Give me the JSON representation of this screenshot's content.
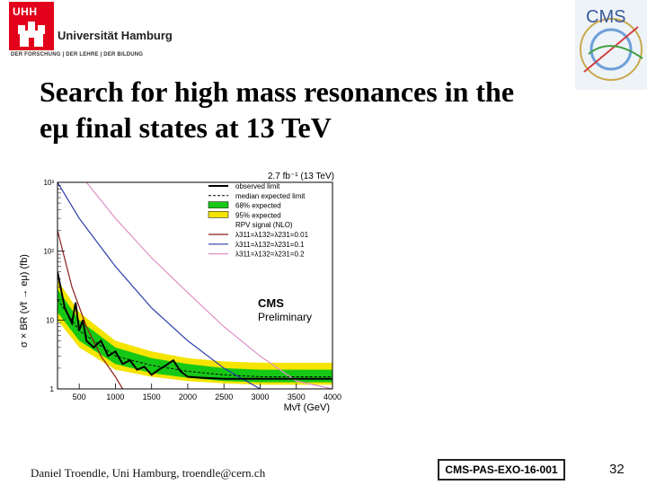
{
  "header": {
    "uhh_mark": "UHH",
    "university_name": "Universität Hamburg",
    "university_claim": "DER FORSCHUNG | DER LEHRE | DER BILDUNG",
    "experiment_logo": "CMS"
  },
  "slide": {
    "title_line1": "Search for high mass resonances in the",
    "title_line2": "eμ final states at 13 TeV"
  },
  "footer": {
    "author": "Daniel Troendle, Uni Hamburg, troendle@cern.ch",
    "reference": "CMS-PAS-EXO-16-001",
    "page_number": "32"
  },
  "colors": {
    "band95": "#f5e400",
    "band68": "#16c816",
    "observed": "#000000",
    "signal1": "#8b1a1a",
    "signal2": "#2a3aa8",
    "signal3": "#e090c8"
  },
  "chart_data": {
    "type": "line",
    "lumi_label": "2.7 fb⁻¹ (13 TeV)",
    "ylabel": "σ × BR (ν̃τ → eμ) (fb)",
    "xlabel": "Mν̃τ (GeV)",
    "xlim": [
      200,
      4000
    ],
    "ylim_log10": [
      0,
      3
    ],
    "x_ticks": [
      500,
      1000,
      1500,
      2000,
      2500,
      3000,
      3500,
      4000
    ],
    "y_ticks": [
      {
        "value": 1,
        "label": "1"
      },
      {
        "value": 10,
        "label": "10"
      },
      {
        "value": 100,
        "label": "10²"
      },
      {
        "value": 1000,
        "label": "10³"
      }
    ],
    "cms_label": "CMS",
    "cms_sublabel": "Preliminary",
    "legend": [
      {
        "key": "observed",
        "label": "observed limit"
      },
      {
        "key": "median",
        "label": "median expected limit"
      },
      {
        "key": "band68",
        "label": "68% expected"
      },
      {
        "key": "band95",
        "label": "95% expected"
      },
      {
        "key": "header",
        "label": "RPV signal (NLO)"
      },
      {
        "key": "signal1",
        "label": "λ311=λ132=λ231=0.01"
      },
      {
        "key": "signal2",
        "label": "λ311=λ132=λ231=0.1"
      },
      {
        "key": "signal3",
        "label": "λ311=λ132=λ231=0.2"
      }
    ],
    "observed": {
      "x": [
        200,
        300,
        400,
        450,
        500,
        550,
        600,
        700,
        800,
        900,
        1000,
        1100,
        1200,
        1300,
        1400,
        1500,
        1600,
        1700,
        1800,
        1900,
        2000,
        2200,
        2500,
        3000,
        3500,
        4000
      ],
      "y": [
        50,
        15,
        9,
        18,
        7,
        10,
        5,
        4,
        5,
        3,
        3.5,
        2.3,
        2.6,
        1.9,
        2.1,
        1.6,
        1.9,
        2.2,
        2.6,
        1.8,
        1.5,
        1.45,
        1.4,
        1.4,
        1.4,
        1.4
      ]
    },
    "median_expected": {
      "x": [
        200,
        500,
        1000,
        1500,
        2000,
        2500,
        3000,
        3500,
        4000
      ],
      "y": [
        20,
        7,
        3,
        2.2,
        1.8,
        1.6,
        1.5,
        1.5,
        1.5
      ]
    },
    "band68": {
      "x": [
        200,
        500,
        1000,
        1500,
        2000,
        2500,
        3000,
        3500,
        4000
      ],
      "low": [
        13,
        5,
        2.3,
        1.7,
        1.45,
        1.3,
        1.25,
        1.25,
        1.25
      ],
      "high": [
        28,
        10,
        4,
        2.8,
        2.3,
        2.0,
        1.9,
        1.9,
        1.9
      ]
    },
    "band95": {
      "x": [
        200,
        500,
        1000,
        1500,
        2000,
        2500,
        3000,
        3500,
        4000
      ],
      "low": [
        10,
        4,
        1.9,
        1.5,
        1.3,
        1.2,
        1.15,
        1.15,
        1.15
      ],
      "high": [
        38,
        13,
        5,
        3.5,
        2.8,
        2.5,
        2.4,
        2.4,
        2.4
      ]
    },
    "signals": [
      {
        "key": "signal1",
        "x": [
          200,
          400,
          600,
          800,
          1000,
          1100
        ],
        "y": [
          200,
          30,
          8,
          3,
          1.5,
          1
        ]
      },
      {
        "key": "signal2",
        "x": [
          200,
          500,
          1000,
          1500,
          2000,
          2500,
          3000
        ],
        "y": [
          1000,
          300,
          60,
          15,
          5,
          2,
          1
        ]
      },
      {
        "key": "signal3",
        "x": [
          600,
          1000,
          1500,
          2000,
          2500,
          3000,
          3500,
          4000
        ],
        "y": [
          1000,
          300,
          80,
          25,
          8,
          3,
          1.3,
          1
        ]
      }
    ]
  }
}
